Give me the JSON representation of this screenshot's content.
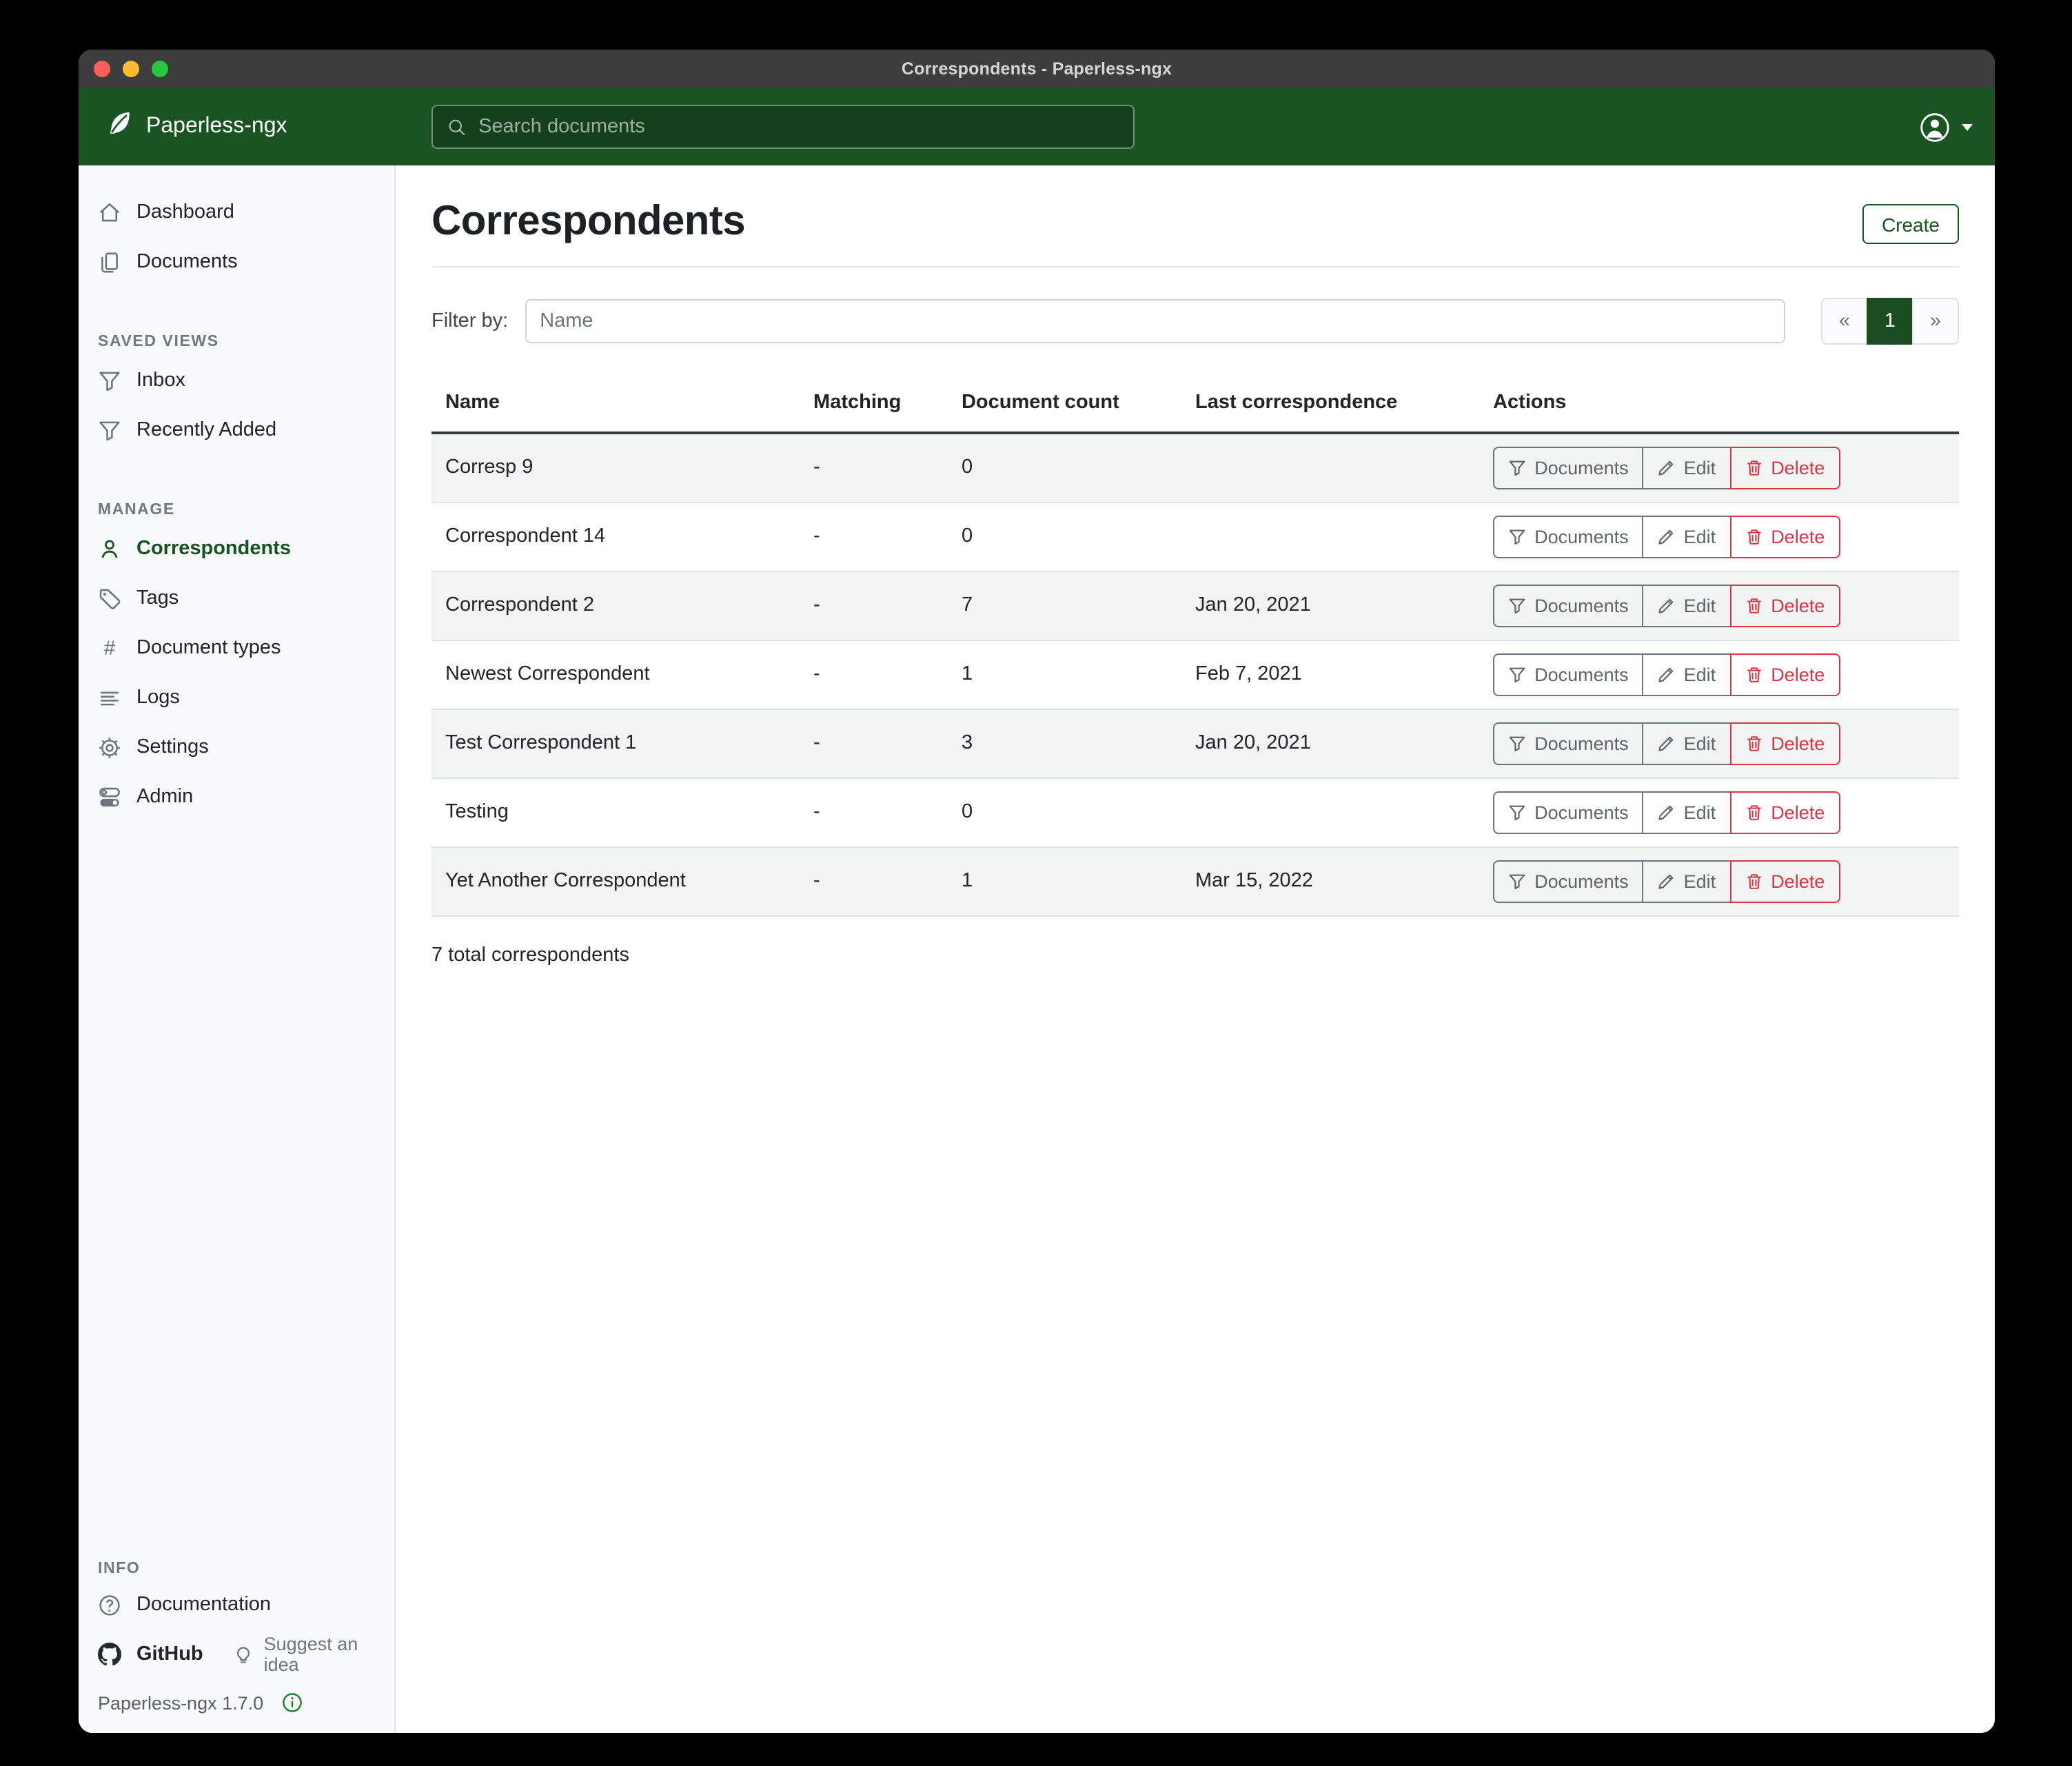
{
  "window": {
    "title": "Correspondents - Paperless-ngx",
    "controls": [
      "close",
      "minimize",
      "maximize"
    ]
  },
  "colors": {
    "accent_green": "#17541f",
    "appbar_green": "#1a5423",
    "danger_red": "#dc3545",
    "traffic_close": "#ff5f57",
    "traffic_minimize": "#febc2e",
    "traffic_maximize": "#28c840"
  },
  "header": {
    "app_name": "Paperless-ngx",
    "logo_icon": "leaf-icon",
    "search_icon": "search-icon",
    "search_placeholder": "Search documents",
    "search_value": "",
    "user_icon": "person-circle-icon"
  },
  "sidebar": {
    "primary": [
      {
        "label": "Dashboard",
        "icon": "home-icon"
      },
      {
        "label": "Documents",
        "icon": "documents-icon"
      }
    ],
    "saved_views_label": "SAVED VIEWS",
    "saved_views": [
      {
        "label": "Inbox",
        "icon": "funnel-icon"
      },
      {
        "label": "Recently Added",
        "icon": "funnel-icon"
      }
    ],
    "manage_label": "MANAGE",
    "manage": [
      {
        "label": "Correspondents",
        "icon": "person-icon",
        "active": true
      },
      {
        "label": "Tags",
        "icon": "tag-icon"
      },
      {
        "label": "Document types",
        "icon": "hash-icon"
      },
      {
        "label": "Logs",
        "icon": "list-icon"
      },
      {
        "label": "Settings",
        "icon": "gear-icon"
      },
      {
        "label": "Admin",
        "icon": "toggles-icon"
      }
    ],
    "info_label": "INFO",
    "documentation_label": "Documentation",
    "github_label": "GitHub",
    "suggest_label": "Suggest an idea",
    "version": "Paperless-ngx 1.7.0"
  },
  "main": {
    "title": "Correspondents",
    "create_label": "Create",
    "filter_label": "Filter by:",
    "filter_placeholder": "Name",
    "filter_value": "",
    "pagination": {
      "prev": "«",
      "page": "1",
      "next": "»"
    },
    "table": {
      "headers": [
        "Name",
        "Matching",
        "Document count",
        "Last correspondence",
        "Actions"
      ],
      "action_labels": {
        "documents": "Documents",
        "edit": "Edit",
        "delete": "Delete"
      },
      "rows": [
        {
          "name": "Corresp 9",
          "matching": "-",
          "count": "0",
          "last": ""
        },
        {
          "name": "Correspondent 14",
          "matching": "-",
          "count": "0",
          "last": ""
        },
        {
          "name": "Correspondent 2",
          "matching": "-",
          "count": "7",
          "last": "Jan 20, 2021"
        },
        {
          "name": "Newest Correspondent",
          "matching": "-",
          "count": "1",
          "last": "Feb 7, 2021"
        },
        {
          "name": "Test Correspondent 1",
          "matching": "-",
          "count": "3",
          "last": "Jan 20, 2021"
        },
        {
          "name": "Testing",
          "matching": "-",
          "count": "0",
          "last": ""
        },
        {
          "name": "Yet Another Correspondent",
          "matching": "-",
          "count": "1",
          "last": "Mar 15, 2022"
        }
      ],
      "summary": "7 total correspondents"
    }
  }
}
